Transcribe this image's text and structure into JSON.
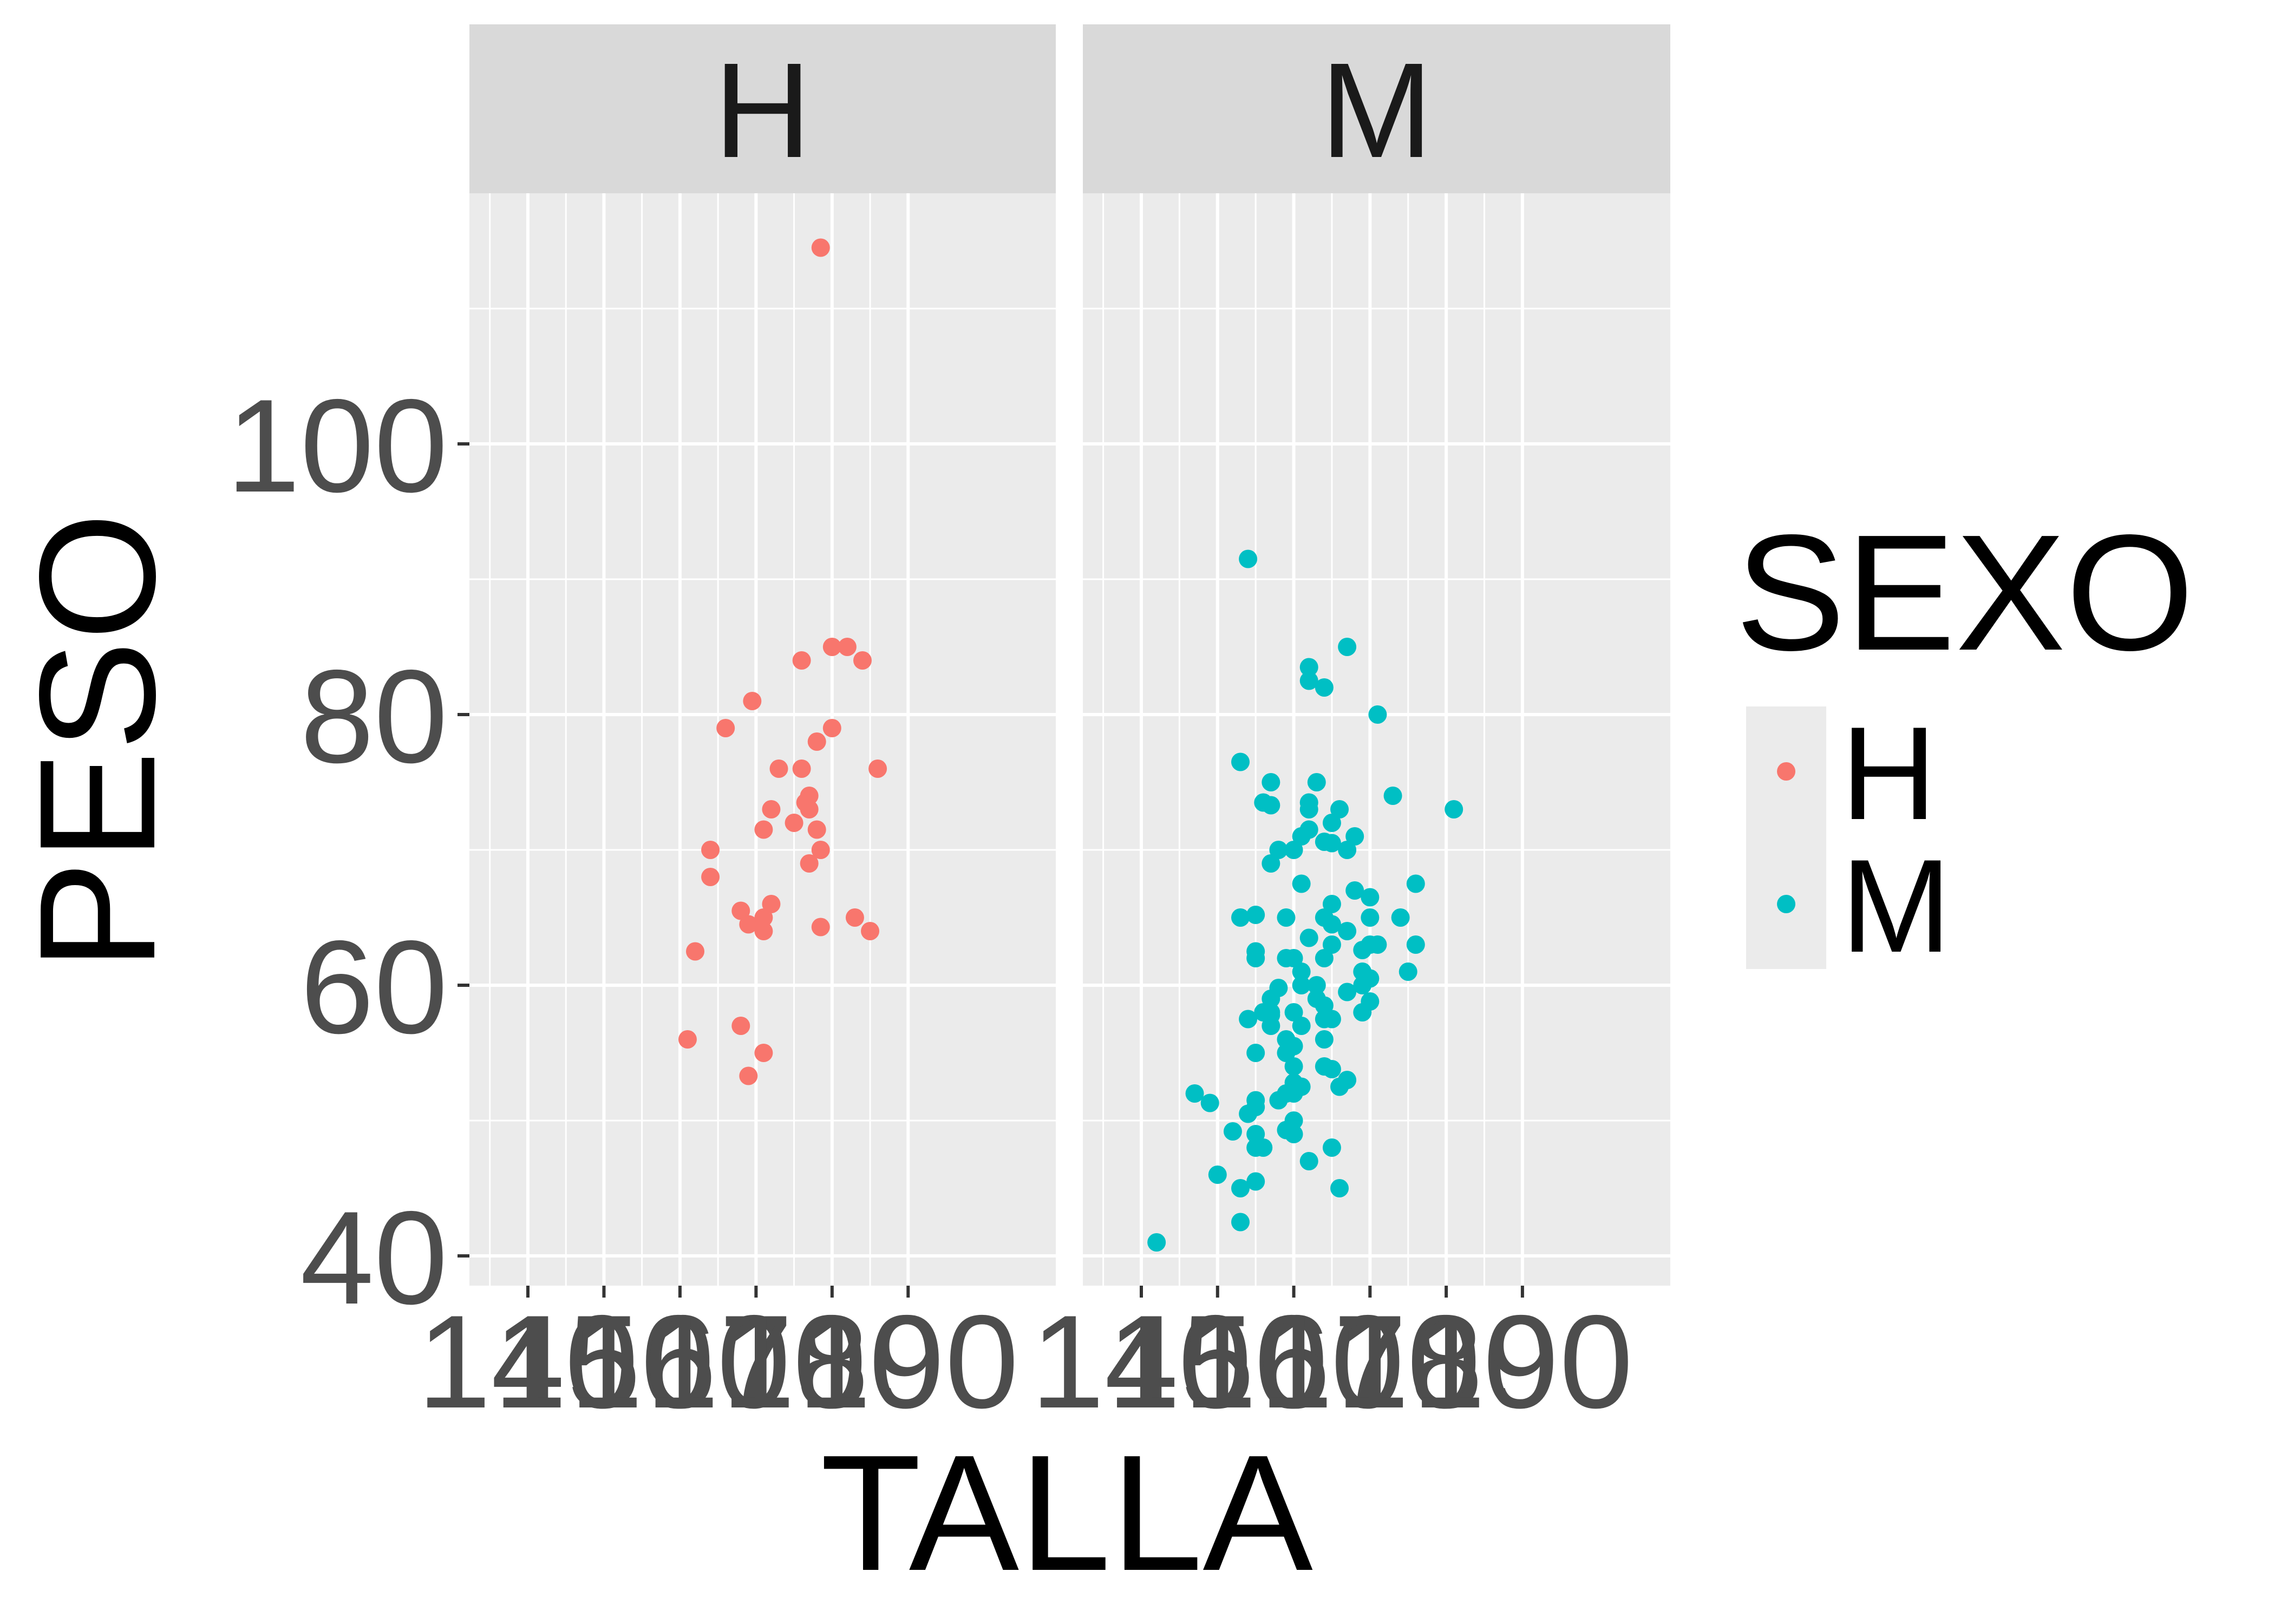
{
  "chart_data": {
    "type": "scatter",
    "facet_by": "SEXO",
    "xlabel": "TALLA",
    "ylabel": "PESO",
    "xlim": [
      140,
      190
    ],
    "ylim": [
      40,
      115
    ],
    "x_ticks": [
      140,
      150,
      160,
      170,
      180,
      190
    ],
    "x_tick_labels": [
      "140",
      "150",
      "160",
      "170",
      "180",
      "190"
    ],
    "y_ticks": [
      40,
      60,
      80,
      100
    ],
    "y_tick_labels": [
      "40",
      "60",
      "80",
      "100"
    ],
    "grid": true,
    "legend": {
      "title": "SEXO",
      "placement": "right",
      "entries": [
        {
          "label": "H",
          "color": "#F8766D"
        },
        {
          "label": "M",
          "color": "#00BFC4"
        }
      ]
    },
    "facets": [
      {
        "label": "H",
        "color": "#F8766D",
        "points": [
          [
            178.5,
            114.5
          ],
          [
            169.5,
            81
          ],
          [
            176,
            84
          ],
          [
            180,
            85
          ],
          [
            182,
            85
          ],
          [
            184,
            84
          ],
          [
            166,
            79
          ],
          [
            180,
            79
          ],
          [
            178,
            78
          ],
          [
            173,
            76
          ],
          [
            176,
            76
          ],
          [
            186,
            76
          ],
          [
            177,
            74
          ],
          [
            176.5,
            73.5
          ],
          [
            177,
            73
          ],
          [
            172,
            73
          ],
          [
            175,
            72
          ],
          [
            171,
            71.5
          ],
          [
            178,
            71.5
          ],
          [
            164,
            70
          ],
          [
            178.5,
            70
          ],
          [
            177,
            69
          ],
          [
            164,
            68
          ],
          [
            168,
            65.5
          ],
          [
            169,
            64.5
          ],
          [
            171,
            65
          ],
          [
            172,
            66
          ],
          [
            171,
            64
          ],
          [
            178.5,
            64.3
          ],
          [
            183,
            65
          ],
          [
            185,
            64
          ],
          [
            162,
            62.5
          ],
          [
            161,
            56
          ],
          [
            168,
            57
          ],
          [
            171,
            55
          ],
          [
            169,
            53.3
          ]
        ]
      },
      {
        "label": "M",
        "color": "#00BFC4",
        "points": [
          [
            142,
            41
          ],
          [
            154,
            91.5
          ],
          [
            167,
            85
          ],
          [
            162,
            83.5
          ],
          [
            162,
            82.5
          ],
          [
            164,
            82
          ],
          [
            171,
            80
          ],
          [
            153,
            76.5
          ],
          [
            157,
            75
          ],
          [
            163,
            75
          ],
          [
            173,
            74
          ],
          [
            157,
            73.3
          ],
          [
            162,
            73.5
          ],
          [
            162,
            73
          ],
          [
            166,
            73
          ],
          [
            165,
            72
          ],
          [
            168,
            71
          ],
          [
            161,
            71
          ],
          [
            162,
            71.5
          ],
          [
            165,
            70.5
          ],
          [
            167,
            70
          ],
          [
            160,
            70
          ],
          [
            158,
            70
          ],
          [
            157,
            69
          ],
          [
            161,
            67.5
          ],
          [
            168,
            67
          ],
          [
            170,
            66.5
          ],
          [
            176,
            67.5
          ],
          [
            165,
            66
          ],
          [
            164,
            65
          ],
          [
            165,
            64.5
          ],
          [
            167,
            64
          ],
          [
            174,
            65
          ],
          [
            170,
            65
          ],
          [
            155,
            65.2
          ],
          [
            153,
            65
          ],
          [
            159,
            65
          ],
          [
            162,
            63.5
          ],
          [
            165,
            63
          ],
          [
            170,
            63
          ],
          [
            171,
            63
          ],
          [
            176,
            63
          ],
          [
            169,
            62.6
          ],
          [
            155,
            62.5
          ],
          [
            155,
            62
          ],
          [
            159,
            62
          ],
          [
            160,
            62
          ],
          [
            161,
            61
          ],
          [
            164,
            62
          ],
          [
            169,
            61
          ],
          [
            170,
            60.5
          ],
          [
            169,
            60
          ],
          [
            163,
            60
          ],
          [
            158,
            59.8
          ],
          [
            161,
            60
          ],
          [
            167,
            59.5
          ],
          [
            160,
            58
          ],
          [
            164,
            58.5
          ],
          [
            157,
            59
          ],
          [
            163,
            59
          ],
          [
            156,
            58
          ],
          [
            157,
            57.8
          ],
          [
            164,
            57.5
          ],
          [
            165,
            57.5
          ],
          [
            169,
            58
          ],
          [
            170,
            58.8
          ],
          [
            175,
            61
          ],
          [
            154,
            57.5
          ],
          [
            161,
            57
          ],
          [
            157,
            57
          ],
          [
            159,
            56
          ],
          [
            164,
            56
          ],
          [
            160,
            55.5
          ],
          [
            159,
            55
          ],
          [
            155,
            55
          ],
          [
            160,
            54
          ],
          [
            164,
            54
          ],
          [
            165,
            53.8
          ],
          [
            167,
            53
          ],
          [
            160,
            52.8
          ],
          [
            166,
            52.5
          ],
          [
            159,
            52
          ],
          [
            160,
            52
          ],
          [
            161,
            52.5
          ],
          [
            158,
            51.5
          ],
          [
            155,
            51
          ],
          [
            147,
            52
          ],
          [
            149,
            51.3
          ],
          [
            155,
            51.5
          ],
          [
            154,
            50.5
          ],
          [
            159,
            49.3
          ],
          [
            160,
            49
          ],
          [
            160,
            50
          ],
          [
            155,
            49
          ],
          [
            152,
            49.2
          ],
          [
            155,
            48
          ],
          [
            156,
            48
          ],
          [
            165,
            48
          ],
          [
            162,
            47
          ],
          [
            150,
            46
          ],
          [
            155,
            45.5
          ],
          [
            153,
            45
          ],
          [
            166,
            45
          ],
          [
            153,
            42.5
          ],
          [
            156,
            73.5
          ],
          [
            164,
            70.6
          ],
          [
            181,
            73
          ],
          [
            157,
            58
          ]
        ]
      }
    ]
  }
}
